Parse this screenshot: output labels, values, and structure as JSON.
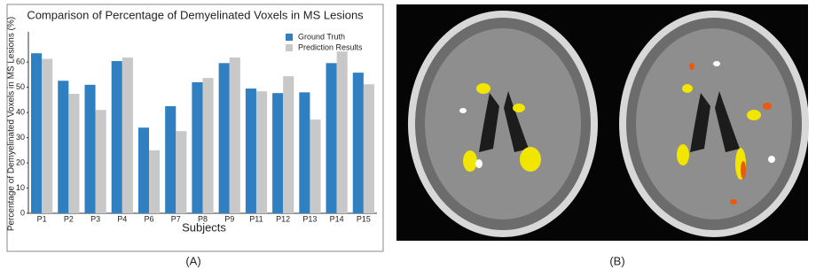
{
  "chart_data": {
    "type": "bar",
    "title": "Comparison of Percentage of Demyelinated Voxels in MS Lesions",
    "x_label": "Subjects",
    "y_label": "Percentage of Demyelinated Voxels in MS Lesions (%)",
    "categories": [
      "P1",
      "P2",
      "P3",
      "P4",
      "P6",
      "P7",
      "P8",
      "P9",
      "P11",
      "P12",
      "P13",
      "P14",
      "P15"
    ],
    "series": [
      {
        "name": "Ground Truth",
        "color": "#2f7fc1",
        "values": [
          63.5,
          52.6,
          51,
          60.4,
          34,
          42.5,
          52,
          59.6,
          49.5,
          47.7,
          48,
          59.6,
          55.8
        ]
      },
      {
        "name": "Prediction Results",
        "color": "#c8c8c8",
        "values": [
          61.3,
          47.4,
          41,
          61.8,
          25,
          32.6,
          53.7,
          61.8,
          48.4,
          54.4,
          37.2,
          64.2,
          51.2
        ]
      }
    ],
    "ylim": [
      0,
      72
    ],
    "yticks": [
      0,
      10,
      20,
      30,
      40,
      50,
      60
    ],
    "grid": false,
    "legend": "upper right"
  },
  "figure": {
    "panel_labels": [
      "(A)",
      "(B)"
    ]
  }
}
